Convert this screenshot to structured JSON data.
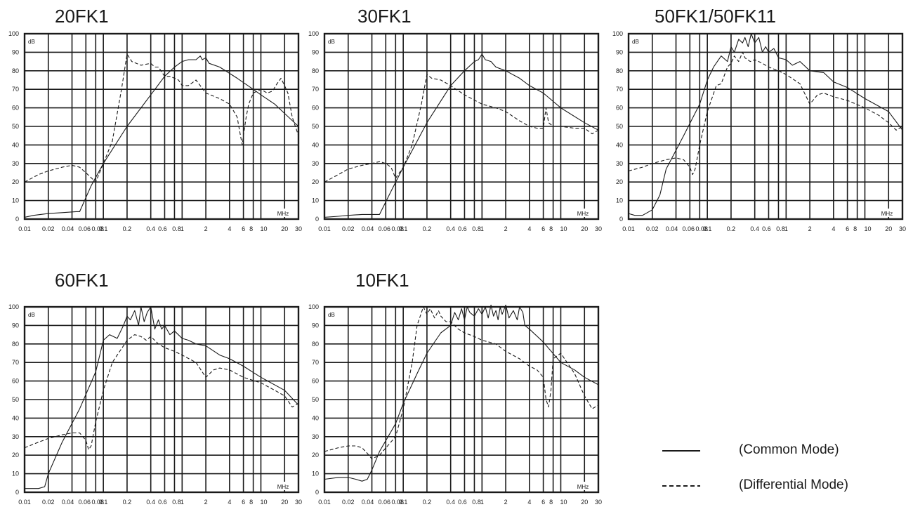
{
  "chart_data": [
    {
      "type": "line",
      "title": "20FK1",
      "ylabel": "dB",
      "xlabel": "MHz",
      "xscale": "log",
      "xlim": [
        0.01,
        30
      ],
      "ylim": [
        0,
        100
      ],
      "yticks": [
        "0",
        "10",
        "20",
        "30",
        "40",
        "50",
        "60",
        "70",
        "80",
        "90",
        "100"
      ],
      "xticks": [
        "0.01",
        "0.02",
        "0.04",
        "0.06",
        "0.08",
        "0.1",
        "0.2",
        "0.4",
        "0.6",
        "0.8",
        "1",
        "2",
        "4",
        "6",
        "8",
        "10",
        "20",
        "30"
      ],
      "series": [
        {
          "style": "solid",
          "x": [
            0.01,
            0.013,
            0.02,
            0.03,
            0.045,
            0.05,
            0.07,
            0.1,
            0.2,
            0.4,
            0.6,
            0.8,
            1.0,
            1.2,
            1.5,
            1.7,
            1.8,
            2.0,
            2.2,
            3,
            5,
            8,
            10,
            15,
            20,
            30
          ],
          "y": [
            1,
            2,
            3,
            3.5,
            4,
            4,
            18,
            30,
            50,
            67,
            77,
            82,
            85,
            86,
            86,
            88,
            86,
            87,
            84,
            82,
            76,
            70,
            67,
            62,
            57,
            50
          ]
        },
        {
          "style": "dashed",
          "x": [
            0.01,
            0.015,
            0.02,
            0.03,
            0.04,
            0.05,
            0.06,
            0.08,
            0.1,
            0.13,
            0.17,
            0.2,
            0.23,
            0.3,
            0.4,
            0.45,
            0.5,
            0.6,
            0.7,
            0.8,
            0.9,
            1.0,
            1.2,
            1.5,
            2,
            3,
            4,
            5,
            5.5,
            5.8,
            6,
            6.5,
            7,
            8,
            10,
            12,
            14,
            16,
            18,
            20,
            22,
            25,
            30
          ],
          "y": [
            20,
            24,
            26,
            28,
            29,
            28,
            25,
            20,
            30,
            42,
            70,
            89,
            85,
            83,
            84,
            82,
            82,
            77,
            77,
            76,
            75,
            72,
            72,
            75,
            68,
            65,
            62,
            55,
            45,
            40,
            45,
            55,
            62,
            68,
            70,
            68,
            69,
            73,
            76,
            72,
            68,
            55,
            45
          ]
        }
      ]
    },
    {
      "type": "line",
      "title": "30FK1",
      "ylabel": "dB",
      "xlabel": "MHz",
      "xscale": "log",
      "xlim": [
        0.01,
        30
      ],
      "ylim": [
        0,
        100
      ],
      "yticks": [
        "0",
        "10",
        "20",
        "30",
        "40",
        "50",
        "60",
        "70",
        "80",
        "90",
        "100"
      ],
      "xticks": [
        "0.01",
        "0.02",
        "0.04",
        "0.06",
        "0.08",
        "0.1",
        "0.2",
        "0.4",
        "0.6",
        "0.8",
        "1",
        "2",
        "4",
        "6",
        "8",
        "10",
        "20",
        "30"
      ],
      "series": [
        {
          "style": "solid",
          "x": [
            0.01,
            0.015,
            0.02,
            0.03,
            0.045,
            0.05,
            0.07,
            0.1,
            0.2,
            0.4,
            0.6,
            0.8,
            0.9,
            1.0,
            1.1,
            1.3,
            1.5,
            2,
            3,
            4,
            6,
            10,
            20,
            30
          ],
          "y": [
            1,
            1.5,
            2,
            2.5,
            2.5,
            2.5,
            15,
            28,
            52,
            72,
            80,
            85,
            86,
            89,
            86,
            85,
            82,
            80,
            76,
            72,
            68,
            60,
            52,
            48
          ]
        },
        {
          "style": "dashed",
          "x": [
            0.01,
            0.015,
            0.02,
            0.03,
            0.04,
            0.05,
            0.06,
            0.07,
            0.08,
            0.1,
            0.13,
            0.17,
            0.2,
            0.23,
            0.3,
            0.4,
            0.6,
            1,
            1.5,
            2,
            3,
            4,
            5,
            6,
            6.5,
            7,
            8,
            10,
            15,
            20,
            25,
            30
          ],
          "y": [
            20,
            24,
            27,
            29,
            30,
            31,
            30,
            28,
            22,
            28,
            40,
            62,
            78,
            76,
            75,
            72,
            67,
            62,
            60,
            58,
            53,
            50,
            49,
            49,
            60,
            52,
            50,
            50,
            49,
            49,
            46,
            48
          ]
        }
      ]
    },
    {
      "type": "line",
      "title": "50FK1/50FK11",
      "ylabel": "dB",
      "xlabel": "MHz",
      "xscale": "log",
      "xlim": [
        0.01,
        30
      ],
      "ylim": [
        0,
        100
      ],
      "yticks": [
        "0",
        "10",
        "20",
        "30",
        "40",
        "50",
        "60",
        "70",
        "80",
        "90",
        "100"
      ],
      "xticks": [
        "0.01",
        "0.02",
        "0.04",
        "0.06",
        "0.08",
        "0.1",
        "0.2",
        "0.4",
        "0.6",
        "0.8",
        "1",
        "2",
        "4",
        "6",
        "8",
        "10",
        "20",
        "30"
      ],
      "series": [
        {
          "style": "solid",
          "x": [
            0.01,
            0.012,
            0.015,
            0.02,
            0.025,
            0.03,
            0.05,
            0.08,
            0.1,
            0.12,
            0.15,
            0.18,
            0.2,
            0.22,
            0.25,
            0.28,
            0.3,
            0.33,
            0.36,
            0.4,
            0.45,
            0.5,
            0.55,
            0.6,
            0.7,
            0.8,
            1.0,
            1.2,
            1.5,
            2,
            3,
            4,
            6,
            10,
            20,
            30
          ],
          "y": [
            3,
            2,
            2,
            5,
            13,
            27,
            45,
            62,
            75,
            82,
            88,
            85,
            93,
            90,
            97,
            95,
            98,
            93,
            100,
            95,
            98,
            90,
            93,
            90,
            92,
            87,
            86,
            83,
            85,
            80,
            79,
            74,
            71,
            65,
            58,
            48
          ]
        },
        {
          "style": "dashed",
          "x": [
            0.01,
            0.015,
            0.02,
            0.03,
            0.04,
            0.05,
            0.06,
            0.065,
            0.07,
            0.08,
            0.1,
            0.13,
            0.15,
            0.18,
            0.2,
            0.22,
            0.25,
            0.28,
            0.3,
            0.35,
            0.4,
            0.5,
            0.6,
            0.8,
            1,
            1.5,
            2,
            2.5,
            3,
            4,
            6,
            10,
            15,
            20,
            25,
            30
          ],
          "y": [
            26,
            28,
            30,
            32,
            33,
            32,
            28,
            24,
            27,
            40,
            58,
            72,
            73,
            82,
            84,
            88,
            85,
            90,
            87,
            85,
            86,
            84,
            82,
            80,
            78,
            73,
            62,
            67,
            68,
            66,
            64,
            60,
            56,
            52,
            48,
            50
          ]
        }
      ]
    },
    {
      "type": "line",
      "title": "60FK1",
      "ylabel": "dB",
      "xlabel": "MHz",
      "xscale": "log",
      "xlim": [
        0.01,
        30
      ],
      "ylim": [
        0,
        100
      ],
      "yticks": [
        "0",
        "10",
        "20",
        "30",
        "40",
        "50",
        "60",
        "70",
        "80",
        "90",
        "100"
      ],
      "xticks": [
        "0.01",
        "0.02",
        "0.04",
        "0.06",
        "0.08",
        "0.1",
        "0.2",
        "0.4",
        "0.6",
        "0.8",
        "1",
        "2",
        "4",
        "6",
        "8",
        "10",
        "20",
        "30"
      ],
      "series": [
        {
          "style": "solid",
          "x": [
            0.01,
            0.015,
            0.018,
            0.02,
            0.03,
            0.05,
            0.08,
            0.1,
            0.12,
            0.15,
            0.18,
            0.2,
            0.22,
            0.25,
            0.28,
            0.3,
            0.33,
            0.36,
            0.4,
            0.45,
            0.5,
            0.55,
            0.6,
            0.7,
            0.8,
            1.0,
            1.2,
            1.5,
            2,
            3,
            4,
            6,
            10,
            20,
            30
          ],
          "y": [
            2,
            2,
            3,
            10,
            27,
            45,
            65,
            82,
            85,
            83,
            90,
            95,
            93,
            98,
            90,
            100,
            92,
            97,
            100,
            88,
            93,
            88,
            90,
            85,
            87,
            83,
            82,
            80,
            79,
            74,
            72,
            68,
            62,
            55,
            47
          ]
        },
        {
          "style": "dashed",
          "x": [
            0.01,
            0.015,
            0.02,
            0.03,
            0.04,
            0.05,
            0.06,
            0.065,
            0.07,
            0.08,
            0.1,
            0.13,
            0.15,
            0.18,
            0.2,
            0.25,
            0.3,
            0.35,
            0.4,
            0.5,
            0.6,
            0.8,
            1,
            1.5,
            2,
            2.5,
            3,
            4,
            6,
            10,
            15,
            20,
            25,
            30
          ],
          "y": [
            24,
            27,
            29,
            31,
            32,
            32,
            28,
            23,
            25,
            38,
            55,
            70,
            74,
            79,
            82,
            85,
            84,
            82,
            84,
            80,
            78,
            76,
            74,
            70,
            62,
            66,
            67,
            66,
            62,
            59,
            55,
            52,
            46,
            48
          ]
        }
      ]
    },
    {
      "type": "line",
      "title": "10FK1",
      "ylabel": "dB",
      "xlabel": "MHz",
      "xscale": "log",
      "xlim": [
        0.01,
        30
      ],
      "ylim": [
        0,
        100
      ],
      "yticks": [
        "0",
        "10",
        "20",
        "30",
        "40",
        "50",
        "60",
        "70",
        "80",
        "90",
        "100"
      ],
      "xticks": [
        "0.01",
        "0.02",
        "0.04",
        "0.06",
        "0.08",
        "0.1",
        "0.2",
        "0.4",
        "0.6",
        "0.8",
        "1",
        "2",
        "4",
        "6",
        "8",
        "10",
        "20",
        "30"
      ],
      "series": [
        {
          "style": "solid",
          "x": [
            0.01,
            0.015,
            0.02,
            0.025,
            0.03,
            0.035,
            0.04,
            0.05,
            0.08,
            0.1,
            0.15,
            0.2,
            0.3,
            0.4,
            0.45,
            0.5,
            0.55,
            0.6,
            0.65,
            0.7,
            0.8,
            0.9,
            1.0,
            1.1,
            1.2,
            1.3,
            1.4,
            1.5,
            1.6,
            1.7,
            1.8,
            2,
            2.2,
            2.5,
            2.8,
            3,
            3.3,
            3.5,
            4,
            6,
            10,
            15,
            20,
            30
          ],
          "y": [
            7,
            8,
            8,
            7,
            6,
            7,
            12,
            22,
            37,
            48,
            64,
            75,
            86,
            90,
            97,
            93,
            99,
            93,
            100,
            97,
            95,
            99,
            96,
            100,
            94,
            101,
            95,
            98,
            93,
            100,
            96,
            101,
            94,
            98,
            93,
            100,
            97,
            90,
            88,
            81,
            70,
            66,
            62,
            58
          ]
        },
        {
          "style": "dashed",
          "x": [
            0.01,
            0.015,
            0.02,
            0.025,
            0.03,
            0.035,
            0.04,
            0.05,
            0.08,
            0.1,
            0.13,
            0.15,
            0.18,
            0.2,
            0.22,
            0.25,
            0.28,
            0.3,
            0.35,
            0.4,
            0.5,
            0.6,
            0.8,
            1,
            1.5,
            2,
            3,
            4,
            5,
            6,
            6.5,
            7,
            7.5,
            8,
            10,
            12,
            15,
            20,
            25,
            30
          ],
          "y": [
            22,
            24,
            25,
            25,
            24,
            21,
            18,
            20,
            30,
            45,
            70,
            90,
            100,
            96,
            99,
            94,
            98,
            95,
            92,
            92,
            88,
            86,
            84,
            82,
            80,
            76,
            72,
            68,
            66,
            62,
            50,
            46,
            55,
            72,
            75,
            70,
            64,
            52,
            45,
            47
          ]
        }
      ]
    }
  ],
  "legend": {
    "common": "(Common Mode)",
    "differential": "(Differential Mode)"
  },
  "colors": {
    "line": "#1a1a1a",
    "grid": "#1a1a1a",
    "background": "#ffffff"
  }
}
